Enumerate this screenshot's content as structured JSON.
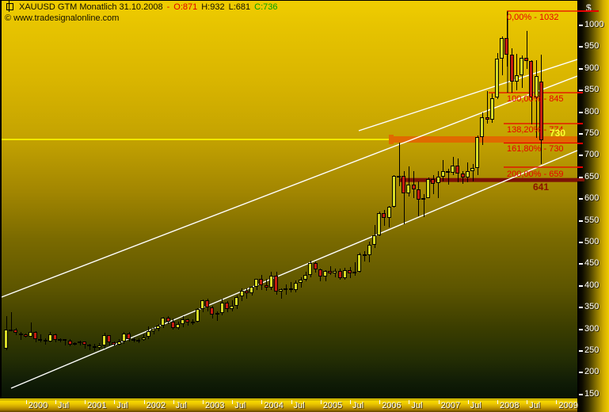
{
  "title": {
    "prefix": "XAUUSD GTM Monatlich  31.10.2008",
    "separator": "-",
    "open": "O:871",
    "high": "H:932",
    "low": "L:681",
    "close": "C:736"
  },
  "watermark": "© www.tradesignalonline.com",
  "price_axis": {
    "currency_label": "$",
    "ticks": [
      1000,
      950,
      900,
      850,
      800,
      750,
      700,
      650,
      600,
      550,
      500,
      450,
      400,
      350,
      300,
      250,
      200,
      150
    ]
  },
  "time_axis": {
    "labels": [
      {
        "text": "2000",
        "m": 4
      },
      {
        "text": "Jul",
        "m": 10
      },
      {
        "text": "2001",
        "m": 16
      },
      {
        "text": "Jul",
        "m": 22
      },
      {
        "text": "2002",
        "m": 28
      },
      {
        "text": "Jul",
        "m": 34
      },
      {
        "text": "2003",
        "m": 40
      },
      {
        "text": "Jul",
        "m": 46
      },
      {
        "text": "2004",
        "m": 52
      },
      {
        "text": "Jul",
        "m": 58
      },
      {
        "text": "2005",
        "m": 64
      },
      {
        "text": "Jul",
        "m": 70
      },
      {
        "text": "2006",
        "m": 76
      },
      {
        "text": "Jul",
        "m": 82
      },
      {
        "text": "2007",
        "m": 88
      },
      {
        "text": "Jul",
        "m": 94
      },
      {
        "text": "2008",
        "m": 100
      },
      {
        "text": "Jul",
        "m": 106
      },
      {
        "text": "2009",
        "m": 112
      }
    ]
  },
  "annotations": {
    "fib_levels": [
      {
        "pct": "0,00%",
        "price": 1032,
        "label": "0,00% - 1032"
      },
      {
        "pct": "100,00%",
        "price": 845,
        "label": "100,00% - 845"
      },
      {
        "pct": "138,20%",
        "price": 774,
        "label": "138,20% - 774"
      },
      {
        "pct": "161,80%",
        "price": 730,
        "label": "161,80% - 730"
      },
      {
        "pct": "200,00%",
        "price": 659,
        "label": "200,00% - 659"
      }
    ],
    "price_label_730": "730",
    "price_label_641": "641"
  },
  "colors": {
    "up_candle": "#d8dc26",
    "down_candle": "#c41e10",
    "wick": "#000000",
    "fib_line": "#e80000",
    "orange_band": "#e06a00",
    "maroon_band": "#7c1206",
    "yellow_line": "#ffff00",
    "channel_line": "#ffffff",
    "label_730": "#ffff33",
    "label_641": "#8b1200",
    "title_open": "#e00000",
    "title_close": "#00a400",
    "axis_text": "#ffffff"
  },
  "chart_data": {
    "type": "candlestick",
    "title": "XAUUSD GTM Monatlich 31.10.2008 - O:871 H:932 L:681 C:736",
    "symbol": "XAUUSD",
    "period": "monthly",
    "start": "1999-09",
    "end": "2008-10",
    "ylabel": "$",
    "y_ticks": [
      150,
      200,
      250,
      300,
      350,
      400,
      450,
      500,
      550,
      600,
      650,
      700,
      750,
      800,
      850,
      900,
      950,
      1000
    ],
    "x_tick_years": [
      2000,
      2001,
      2002,
      2003,
      2004,
      2005,
      2006,
      2007,
      2008,
      2009
    ],
    "grid": false,
    "columns": [
      "month",
      "open",
      "high",
      "low",
      "close"
    ],
    "candles": [
      [
        "1999-09",
        255,
        330,
        252,
        299
      ],
      [
        "1999-10",
        299,
        339,
        296,
        300
      ],
      [
        "1999-11",
        300,
        303,
        287,
        291
      ],
      [
        "1999-12",
        291,
        293,
        276,
        288
      ],
      [
        "2000-01",
        288,
        290,
        281,
        283
      ],
      [
        "2000-02",
        283,
        316,
        285,
        294
      ],
      [
        "2000-03",
        294,
        295,
        270,
        278
      ],
      [
        "2000-04",
        278,
        288,
        270,
        275
      ],
      [
        "2000-05",
        275,
        280,
        264,
        272
      ],
      [
        "2000-06",
        272,
        294,
        270,
        289
      ],
      [
        "2000-07",
        289,
        291,
        271,
        276
      ],
      [
        "2000-08",
        276,
        280,
        270,
        277
      ],
      [
        "2000-09",
        277,
        278,
        263,
        273
      ],
      [
        "2000-10",
        273,
        277,
        260,
        264
      ],
      [
        "2000-11",
        264,
        271,
        262,
        269
      ],
      [
        "2000-12",
        269,
        274,
        262,
        272
      ],
      [
        "2001-01",
        272,
        272,
        255,
        265
      ],
      [
        "2001-02",
        265,
        267,
        252,
        261
      ],
      [
        "2001-03",
        261,
        266,
        250,
        257
      ],
      [
        "2001-04",
        257,
        268,
        252,
        263
      ],
      [
        "2001-05",
        263,
        292,
        255,
        286
      ],
      [
        "2001-06",
        286,
        287,
        262,
        270
      ],
      [
        "2001-07",
        270,
        272,
        260,
        265
      ],
      [
        "2001-08",
        265,
        277,
        263,
        272
      ],
      [
        "2001-09",
        272,
        294,
        266,
        291
      ],
      [
        "2001-10",
        291,
        293,
        272,
        278
      ],
      [
        "2001-11",
        278,
        281,
        270,
        274
      ],
      [
        "2001-12",
        274,
        279,
        268,
        276
      ],
      [
        "2002-01",
        276,
        288,
        273,
        282
      ],
      [
        "2002-02",
        282,
        307,
        277,
        296
      ],
      [
        "2002-03",
        296,
        305,
        289,
        301
      ],
      [
        "2002-04",
        301,
        312,
        296,
        308
      ],
      [
        "2002-05",
        308,
        328,
        302,
        326
      ],
      [
        "2002-06",
        326,
        330,
        312,
        318
      ],
      [
        "2002-07",
        318,
        324,
        300,
        303
      ],
      [
        "2002-08",
        303,
        318,
        300,
        312
      ],
      [
        "2002-09",
        312,
        330,
        305,
        323
      ],
      [
        "2002-10",
        323,
        325,
        308,
        316
      ],
      [
        "2002-11",
        316,
        323,
        310,
        317
      ],
      [
        "2002-12",
        317,
        349,
        315,
        347
      ],
      [
        "2003-01",
        347,
        369,
        340,
        367
      ],
      [
        "2003-02",
        367,
        370,
        342,
        350
      ],
      [
        "2003-03",
        350,
        355,
        325,
        334
      ],
      [
        "2003-04",
        334,
        342,
        319,
        338
      ],
      [
        "2003-05",
        338,
        370,
        332,
        361
      ],
      [
        "2003-06",
        361,
        365,
        340,
        346
      ],
      [
        "2003-07",
        346,
        366,
        342,
        354
      ],
      [
        "2003-08",
        354,
        377,
        347,
        375
      ],
      [
        "2003-09",
        375,
        394,
        364,
        388
      ],
      [
        "2003-10",
        388,
        394,
        370,
        384
      ],
      [
        "2003-11",
        384,
        400,
        378,
        398
      ],
      [
        "2003-12",
        398,
        417,
        391,
        416
      ],
      [
        "2004-01",
        416,
        426,
        390,
        402
      ],
      [
        "2004-02",
        402,
        416,
        388,
        395
      ],
      [
        "2004-03",
        395,
        432,
        390,
        423
      ],
      [
        "2004-04",
        423,
        433,
        379,
        387
      ],
      [
        "2004-05",
        387,
        394,
        371,
        393
      ],
      [
        "2004-06",
        393,
        404,
        380,
        395
      ],
      [
        "2004-07",
        395,
        408,
        385,
        391
      ],
      [
        "2004-08",
        391,
        412,
        385,
        407
      ],
      [
        "2004-09",
        407,
        420,
        396,
        415
      ],
      [
        "2004-10",
        415,
        433,
        411,
        425
      ],
      [
        "2004-11",
        425,
        458,
        419,
        453
      ],
      [
        "2004-12",
        453,
        457,
        431,
        438
      ],
      [
        "2005-01",
        438,
        440,
        411,
        422
      ],
      [
        "2005-02",
        422,
        437,
        410,
        435
      ],
      [
        "2005-03",
        435,
        446,
        425,
        428
      ],
      [
        "2005-04",
        428,
        440,
        419,
        435
      ],
      [
        "2005-05",
        435,
        440,
        414,
        418
      ],
      [
        "2005-06",
        418,
        442,
        414,
        437
      ],
      [
        "2005-07",
        437,
        444,
        418,
        429
      ],
      [
        "2005-08",
        429,
        455,
        424,
        433
      ],
      [
        "2005-09",
        433,
        477,
        430,
        473
      ],
      [
        "2005-10",
        473,
        480,
        456,
        470
      ],
      [
        "2005-11",
        470,
        502,
        455,
        495
      ],
      [
        "2005-12",
        495,
        541,
        488,
        517
      ],
      [
        "2006-01",
        517,
        572,
        515,
        568
      ],
      [
        "2006-02",
        568,
        575,
        538,
        556
      ],
      [
        "2006-03",
        556,
        584,
        535,
        582
      ],
      [
        "2006-04",
        582,
        655,
        580,
        654
      ],
      [
        "2006-05",
        654,
        730,
        630,
        653
      ],
      [
        "2006-06",
        653,
        665,
        542,
        613
      ],
      [
        "2006-07",
        613,
        676,
        605,
        634
      ],
      [
        "2006-08",
        634,
        664,
        602,
        623
      ],
      [
        "2006-09",
        623,
        640,
        560,
        599
      ],
      [
        "2006-10",
        599,
        611,
        559,
        603
      ],
      [
        "2006-11",
        603,
        649,
        602,
        646
      ],
      [
        "2006-12",
        646,
        655,
        612,
        636
      ],
      [
        "2007-01",
        636,
        665,
        602,
        651
      ],
      [
        "2007-02",
        651,
        689,
        640,
        664
      ],
      [
        "2007-03",
        664,
        669,
        634,
        661
      ],
      [
        "2007-04",
        661,
        698,
        655,
        677
      ],
      [
        "2007-05",
        677,
        693,
        639,
        659
      ],
      [
        "2007-06",
        659,
        665,
        635,
        650
      ],
      [
        "2007-07",
        650,
        684,
        639,
        665
      ],
      [
        "2007-08",
        665,
        680,
        641,
        672
      ],
      [
        "2007-09",
        672,
        747,
        655,
        743
      ],
      [
        "2007-10",
        743,
        800,
        725,
        789
      ],
      [
        "2007-11",
        789,
        848,
        773,
        783
      ],
      [
        "2007-12",
        783,
        843,
        776,
        833
      ],
      [
        "2008-01",
        833,
        936,
        830,
        923
      ],
      [
        "2008-02",
        923,
        975,
        885,
        971
      ],
      [
        "2008-03",
        971,
        1032,
        905,
        933
      ],
      [
        "2008-04",
        933,
        948,
        845,
        871
      ],
      [
        "2008-05",
        871,
        935,
        850,
        885
      ],
      [
        "2008-06",
        885,
        930,
        855,
        926
      ],
      [
        "2008-07",
        926,
        988,
        900,
        918
      ],
      [
        "2008-08",
        918,
        920,
        772,
        833
      ],
      [
        "2008-09",
        833,
        920,
        740,
        884
      ],
      [
        "2008-10",
        871,
        932,
        681,
        736
      ]
    ],
    "fib_anchor": {
      "high_price": 1032,
      "high_month": "2008-03",
      "low_price": 845,
      "low_month": "2008-04"
    },
    "trend_channel_lines": [
      {
        "name": "upper-short-trendline",
        "x1": 451,
        "y1": 164,
        "x2": 727,
        "y2": 74
      },
      {
        "name": "channel-upper-line",
        "x1": 0,
        "y1": 374,
        "x2": 727,
        "y2": 95
      },
      {
        "name": "channel-lower-line",
        "x1": 12,
        "y1": 489,
        "x2": 727,
        "y2": 189
      }
    ],
    "support_levels": [
      730,
      641
    ]
  }
}
